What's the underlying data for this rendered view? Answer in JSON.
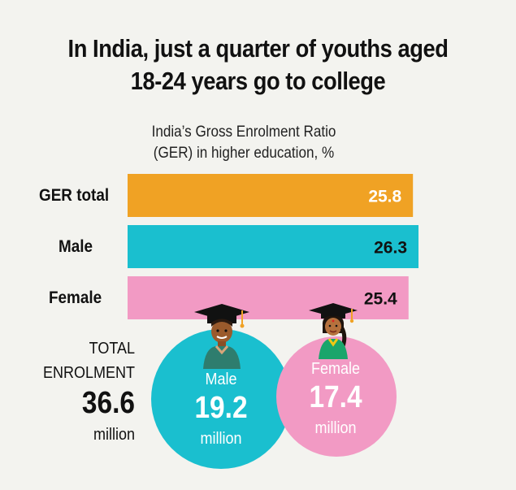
{
  "title_line1": "In India, just a quarter of youths aged",
  "title_line2": "18-24 years go to college",
  "subtitle_line1": "India’s Gross Enrolment Ratio",
  "subtitle_line2": "(GER) in higher education, %",
  "chart_data": {
    "type": "bar",
    "orientation": "horizontal",
    "categories": [
      "GER total",
      "Male",
      "Female"
    ],
    "values": [
      25.8,
      26.3,
      25.4
    ],
    "colors": [
      "#f0a224",
      "#1abfcf",
      "#f29ac4"
    ],
    "value_label_colors": [
      "#ffffff",
      "#111111",
      "#111111"
    ],
    "title": "In India, just a quarter of youths aged 18-24 years go to college",
    "subtitle": "India’s Gross Enrolment Ratio (GER) in higher education, %",
    "xlim": [
      0,
      26.3
    ]
  },
  "enrolment": {
    "label_line1": "TOTAL",
    "label_line2": "ENROLMENT",
    "total_value": "36.6",
    "total_unit": "million",
    "male": {
      "label": "Male",
      "value": "19.2",
      "unit": "million",
      "color": "#1abfcf"
    },
    "female": {
      "label": "Female",
      "value": "17.4",
      "unit": "million",
      "color": "#f29ac4"
    }
  },
  "icons": [
    "male-graduate-icon",
    "female-graduate-icon"
  ]
}
